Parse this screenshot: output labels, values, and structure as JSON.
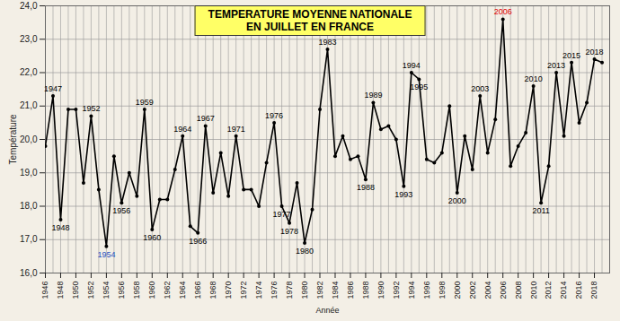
{
  "chart_data": {
    "type": "line",
    "title": "TEMPERATURE MOYENNE NATIONALE\nEN JUILLET EN FRANCE",
    "x_label": "Année",
    "y_label": "Température",
    "x": [
      1946,
      1947,
      1948,
      1949,
      1950,
      1951,
      1952,
      1953,
      1954,
      1955,
      1956,
      1957,
      1958,
      1959,
      1960,
      1961,
      1962,
      1963,
      1964,
      1965,
      1966,
      1967,
      1968,
      1969,
      1970,
      1971,
      1972,
      1973,
      1974,
      1975,
      1976,
      1977,
      1978,
      1979,
      1980,
      1981,
      1982,
      1983,
      1984,
      1985,
      1986,
      1987,
      1988,
      1989,
      1990,
      1991,
      1992,
      1993,
      1994,
      1995,
      1996,
      1997,
      1998,
      1999,
      2000,
      2001,
      2002,
      2003,
      2004,
      2005,
      2006,
      2007,
      2008,
      2009,
      2010,
      2011,
      2012,
      2013,
      2014,
      2015,
      2016,
      2017,
      2018,
      2019
    ],
    "values": [
      19.8,
      21.3,
      17.6,
      20.9,
      20.9,
      18.7,
      20.7,
      18.5,
      16.8,
      19.5,
      18.1,
      19.0,
      18.3,
      20.9,
      17.3,
      18.2,
      18.2,
      19.1,
      20.1,
      17.4,
      17.2,
      20.4,
      18.4,
      19.6,
      18.3,
      20.1,
      18.5,
      18.5,
      18.0,
      19.3,
      20.5,
      18.0,
      17.5,
      18.7,
      16.9,
      17.9,
      20.9,
      22.7,
      19.5,
      20.1,
      19.4,
      19.5,
      18.8,
      21.1,
      20.3,
      20.4,
      20.0,
      18.6,
      22.0,
      21.8,
      19.4,
      19.3,
      19.6,
      21.0,
      18.4,
      20.1,
      19.1,
      21.3,
      19.6,
      20.6,
      23.6,
      19.2,
      19.8,
      20.2,
      21.6,
      18.1,
      19.2,
      22.0,
      20.1,
      22.3,
      20.5,
      21.1,
      22.4,
      22.3
    ],
    "color": "#000000",
    "marker": "dot",
    "xlim": [
      1946,
      2020
    ],
    "xticks": [
      1946,
      1948,
      1950,
      1952,
      1954,
      1956,
      1958,
      1960,
      1962,
      1964,
      1966,
      1968,
      1970,
      1972,
      1974,
      1976,
      1978,
      1980,
      1982,
      1984,
      1986,
      1988,
      1990,
      1992,
      1994,
      1996,
      1998,
      2000,
      2002,
      2004,
      2006,
      2008,
      2010,
      2012,
      2014,
      2016,
      2018
    ],
    "ylim": [
      16,
      24
    ],
    "yticks": [
      {
        "value": 16,
        "label": "16,0"
      },
      {
        "value": 17,
        "label": "17,0"
      },
      {
        "value": 18,
        "label": "18,0"
      },
      {
        "value": 19,
        "label": "19,0"
      },
      {
        "value": 20,
        "label": "20,0"
      },
      {
        "value": 21,
        "label": "21,0"
      },
      {
        "value": 22,
        "label": "22,0"
      },
      {
        "value": 23,
        "label": "23,0"
      },
      {
        "value": 24,
        "label": "24,0"
      }
    ],
    "grid": true,
    "annotations": [
      {
        "x": 1947,
        "text": "1947",
        "color": "#000000"
      },
      {
        "x": 1948,
        "text": "1948",
        "color": "#000000"
      },
      {
        "x": 1952,
        "text": "1952",
        "color": "#000000"
      },
      {
        "x": 1954,
        "text": "1954",
        "color": "#1f4fbf"
      },
      {
        "x": 1956,
        "text": "1956",
        "color": "#000000"
      },
      {
        "x": 1959,
        "text": "1959",
        "color": "#000000"
      },
      {
        "x": 1960,
        "text": "1960",
        "color": "#000000"
      },
      {
        "x": 1964,
        "text": "1964",
        "color": "#000000"
      },
      {
        "x": 1966,
        "text": "1966",
        "color": "#000000"
      },
      {
        "x": 1967,
        "text": "1967",
        "color": "#000000"
      },
      {
        "x": 1971,
        "text": "1971",
        "color": "#000000"
      },
      {
        "x": 1976,
        "text": "1976",
        "color": "#000000"
      },
      {
        "x": 1977,
        "text": "1977",
        "color": "#000000"
      },
      {
        "x": 1978,
        "text": "1978",
        "color": "#000000"
      },
      {
        "x": 1980,
        "text": "1980",
        "color": "#000000"
      },
      {
        "x": 1983,
        "text": "1983",
        "color": "#000000"
      },
      {
        "x": 1988,
        "text": "1988",
        "color": "#000000"
      },
      {
        "x": 1989,
        "text": "1989",
        "color": "#000000"
      },
      {
        "x": 1993,
        "text": "1993",
        "color": "#000000"
      },
      {
        "x": 1994,
        "text": "1994",
        "color": "#000000"
      },
      {
        "x": 1995,
        "text": "1995",
        "color": "#000000"
      },
      {
        "x": 2000,
        "text": "2000",
        "color": "#000000"
      },
      {
        "x": 2003,
        "text": "2003",
        "color": "#000000"
      },
      {
        "x": 2006,
        "text": "2006",
        "color": "#e00000"
      },
      {
        "x": 2010,
        "text": "2010",
        "color": "#000000"
      },
      {
        "x": 2011,
        "text": "2011",
        "color": "#000000"
      },
      {
        "x": 2013,
        "text": "2013",
        "color": "#000000"
      },
      {
        "x": 2015,
        "text": "2015",
        "color": "#000000"
      },
      {
        "x": 2018,
        "text": "2018",
        "color": "#000000"
      }
    ]
  }
}
